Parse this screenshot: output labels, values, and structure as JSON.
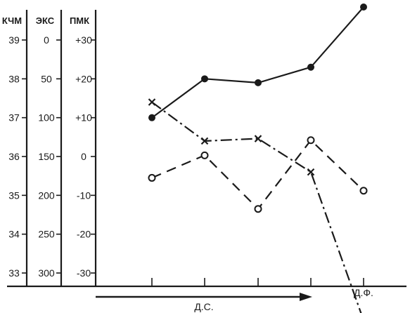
{
  "chart_data": {
    "type": "line",
    "axes": [
      {
        "label": "КЧМ",
        "ticks": [
          "39",
          "38",
          "37",
          "36",
          "35",
          "34",
          "33"
        ]
      },
      {
        "label": "ЭКС",
        "ticks": [
          "0",
          "50",
          "100",
          "150",
          "200",
          "250",
          "300"
        ]
      },
      {
        "label": "ПМК",
        "ticks": [
          "+30",
          "+20",
          "+10",
          "0",
          "-10",
          "-20",
          "-30"
        ]
      }
    ],
    "ylim": [
      33,
      39
    ],
    "x_positions": 5,
    "x_labels": [
      "",
      "",
      "",
      "",
      "Д.Ф."
    ],
    "arrow_label": "Д.С.",
    "grid": false,
    "series": [
      {
        "axis": "КЧМ",
        "marker": "filled-circle",
        "line": "solid",
        "values": [
          37.0,
          38.0,
          37.9,
          38.3,
          40.0
        ]
      },
      {
        "axis": "ЭКС",
        "marker": "cross",
        "line": "dash-dot",
        "values": [
          80,
          130,
          127,
          170,
          361
        ]
      },
      {
        "axis": "ПМК",
        "marker": "open-circle",
        "line": "dashed",
        "values": [
          -5.5,
          0.3,
          -13.5,
          4.2,
          -8.8
        ]
      }
    ]
  }
}
